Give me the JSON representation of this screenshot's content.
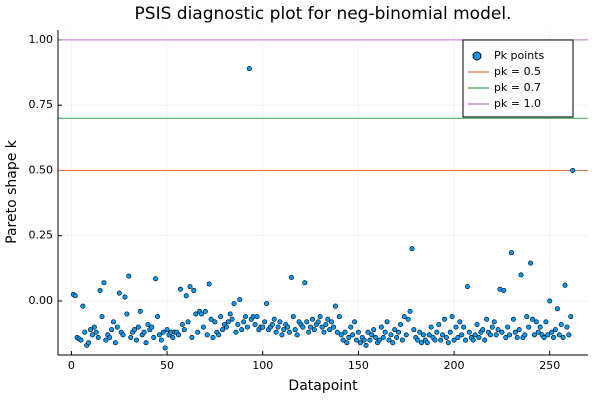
{
  "chart_data": {
    "type": "scatter",
    "title": "PSIS diagnostic plot for neg-binomial model.",
    "x_label": "Datapoint",
    "y_label": "Pareto shape k",
    "xlim": [
      -7,
      270
    ],
    "ylim": [
      -0.207,
      1.038
    ],
    "xticks": [
      0,
      50,
      100,
      150,
      200,
      250
    ],
    "yticks": [
      {
        "value": 0,
        "label": "0.00"
      },
      {
        "value": 0.25,
        "label": "0.25"
      },
      {
        "value": 0.5,
        "label": "0.50"
      },
      {
        "value": 0.75,
        "label": "0.75"
      },
      {
        "value": 1,
        "label": "1.00"
      }
    ],
    "grid": true,
    "legend": "top-right",
    "series": [
      {
        "name": "Pk points",
        "color": "#009af9",
        "x": [
          1,
          2,
          3,
          4,
          5,
          6,
          7,
          8,
          9,
          10,
          11,
          12,
          13,
          14,
          15,
          16,
          17,
          18,
          19,
          20,
          21,
          22,
          23,
          24,
          25,
          26,
          27,
          28,
          29,
          30,
          31,
          32,
          33,
          34,
          35,
          36,
          37,
          38,
          39,
          40,
          41,
          42,
          43,
          44,
          45,
          46,
          47,
          48,
          49,
          50,
          51,
          52,
          53,
          54,
          55,
          56,
          57,
          58,
          59,
          60,
          61,
          62,
          63,
          64,
          65,
          66,
          67,
          68,
          69,
          70,
          71,
          72,
          73,
          74,
          75,
          76,
          77,
          78,
          79,
          80,
          81,
          82,
          83,
          84,
          85,
          86,
          87,
          88,
          89,
          90,
          91,
          92,
          93,
          94,
          95,
          96,
          97,
          98,
          99,
          100,
          101,
          102,
          103,
          104,
          105,
          106,
          107,
          108,
          109,
          110,
          111,
          112,
          113,
          114,
          115,
          116,
          117,
          118,
          119,
          120,
          121,
          122,
          123,
          124,
          125,
          126,
          127,
          128,
          129,
          130,
          131,
          132,
          133,
          134,
          135,
          136,
          137,
          138,
          139,
          140,
          141,
          142,
          143,
          144,
          145,
          146,
          147,
          148,
          149,
          150,
          151,
          152,
          153,
          154,
          155,
          156,
          157,
          158,
          159,
          160,
          161,
          162,
          163,
          164,
          165,
          166,
          167,
          168,
          169,
          170,
          171,
          172,
          173,
          174,
          175,
          176,
          177,
          178,
          179,
          180,
          181,
          182,
          183,
          184,
          185,
          186,
          187,
          188,
          189,
          190,
          191,
          192,
          193,
          194,
          195,
          196,
          197,
          198,
          199,
          200,
          201,
          202,
          203,
          204,
          205,
          206,
          207,
          208,
          209,
          210,
          211,
          212,
          213,
          214,
          215,
          216,
          217,
          218,
          219,
          220,
          221,
          222,
          223,
          224,
          225,
          226,
          227,
          228,
          229,
          230,
          231,
          232,
          233,
          234,
          235,
          236,
          237,
          238,
          239,
          240,
          241,
          242,
          243,
          244,
          245,
          246,
          247,
          248,
          249,
          250,
          251,
          252,
          253,
          254,
          255,
          256,
          257,
          258,
          259,
          260,
          261,
          262
        ],
        "values": [
          0.025,
          0.02,
          -0.14,
          -0.145,
          -0.15,
          -0.02,
          -0.12,
          -0.17,
          -0.16,
          -0.11,
          -0.13,
          -0.1,
          -0.12,
          -0.14,
          0.04,
          -0.06,
          0.07,
          -0.15,
          -0.13,
          -0.14,
          -0.11,
          -0.08,
          -0.16,
          -0.1,
          0.03,
          -0.12,
          -0.13,
          0.015,
          -0.05,
          0.095,
          -0.14,
          -0.12,
          -0.11,
          -0.15,
          -0.1,
          -0.04,
          -0.13,
          -0.12,
          -0.16,
          -0.09,
          -0.11,
          -0.1,
          -0.14,
          0.085,
          -0.06,
          -0.13,
          -0.15,
          -0.12,
          -0.18,
          -0.11,
          -0.13,
          -0.12,
          -0.14,
          -0.12,
          -0.12,
          -0.13,
          0.045,
          -0.09,
          -0.11,
          0.02,
          -0.08,
          0.055,
          -0.14,
          0.04,
          -0.05,
          -0.12,
          -0.04,
          -0.05,
          -0.1,
          -0.04,
          -0.13,
          0.065,
          -0.07,
          -0.14,
          -0.08,
          -0.12,
          -0.13,
          -0.06,
          -0.11,
          -0.09,
          -0.1,
          -0.08,
          -0.05,
          -0.07,
          -0.01,
          -0.12,
          -0.09,
          0.005,
          -0.11,
          -0.08,
          -0.06,
          -0.1,
          0.89,
          -0.07,
          -0.06,
          -0.09,
          -0.06,
          -0.11,
          -0.1,
          -0.1,
          -0.08,
          -0.01,
          -0.11,
          -0.1,
          -0.09,
          -0.07,
          -0.12,
          -0.1,
          -0.08,
          -0.13,
          -0.11,
          -0.09,
          -0.1,
          -0.12,
          0.09,
          -0.06,
          -0.11,
          -0.13,
          -0.08,
          -0.09,
          -0.1,
          0.07,
          -0.08,
          -0.12,
          -0.1,
          -0.07,
          -0.11,
          -0.09,
          -0.08,
          -0.06,
          -0.1,
          -0.12,
          -0.09,
          -0.07,
          -0.11,
          -0.08,
          -0.1,
          -0.02,
          -0.12,
          -0.06,
          -0.13,
          -0.15,
          -0.12,
          -0.16,
          -0.14,
          -0.1,
          -0.13,
          -0.08,
          -0.15,
          -0.12,
          -0.16,
          -0.14,
          -0.15,
          -0.17,
          -0.12,
          -0.15,
          -0.13,
          -0.11,
          -0.14,
          -0.16,
          -0.15,
          -0.1,
          -0.14,
          -0.12,
          -0.08,
          -0.15,
          -0.13,
          -0.16,
          -0.11,
          -0.14,
          -0.12,
          -0.09,
          -0.15,
          -0.06,
          -0.13,
          -0.07,
          -0.04,
          0.2,
          -0.11,
          -0.14,
          -0.15,
          -0.12,
          -0.16,
          -0.13,
          -0.15,
          -0.16,
          -0.13,
          -0.1,
          -0.14,
          -0.15,
          -0.12,
          -0.09,
          -0.15,
          -0.13,
          -0.07,
          -0.14,
          -0.16,
          -0.12,
          -0.06,
          -0.15,
          -0.1,
          -0.14,
          -0.08,
          -0.13,
          -0.1,
          -0.15,
          0.055,
          -0.12,
          -0.14,
          -0.15,
          -0.13,
          -0.09,
          -0.14,
          -0.12,
          -0.11,
          -0.15,
          -0.07,
          -0.12,
          -0.13,
          -0.1,
          -0.08,
          -0.13,
          -0.11,
          0.045,
          -0.12,
          0.04,
          -0.14,
          -0.1,
          -0.13,
          0.185,
          -0.07,
          -0.12,
          -0.14,
          -0.11,
          0.1,
          -0.14,
          -0.13,
          -0.06,
          -0.1,
          0.145,
          -0.07,
          -0.13,
          -0.08,
          -0.12,
          -0.1,
          -0.13,
          -0.14,
          -0.08,
          -0.13,
          0.0,
          -0.12,
          -0.14,
          -0.11,
          -0.03,
          -0.13,
          -0.09,
          -0.14,
          0.06,
          -0.1,
          -0.13,
          -0.06,
          0.5
        ]
      }
    ],
    "hlines": [
      {
        "name": "pk = 0.5",
        "color": "#e26f46",
        "value": 0.5
      },
      {
        "name": "pk = 0.7",
        "color": "#3da44d",
        "value": 0.7
      },
      {
        "name": "pk = 1.0",
        "color": "#c271d2",
        "value": 1.0
      }
    ]
  }
}
